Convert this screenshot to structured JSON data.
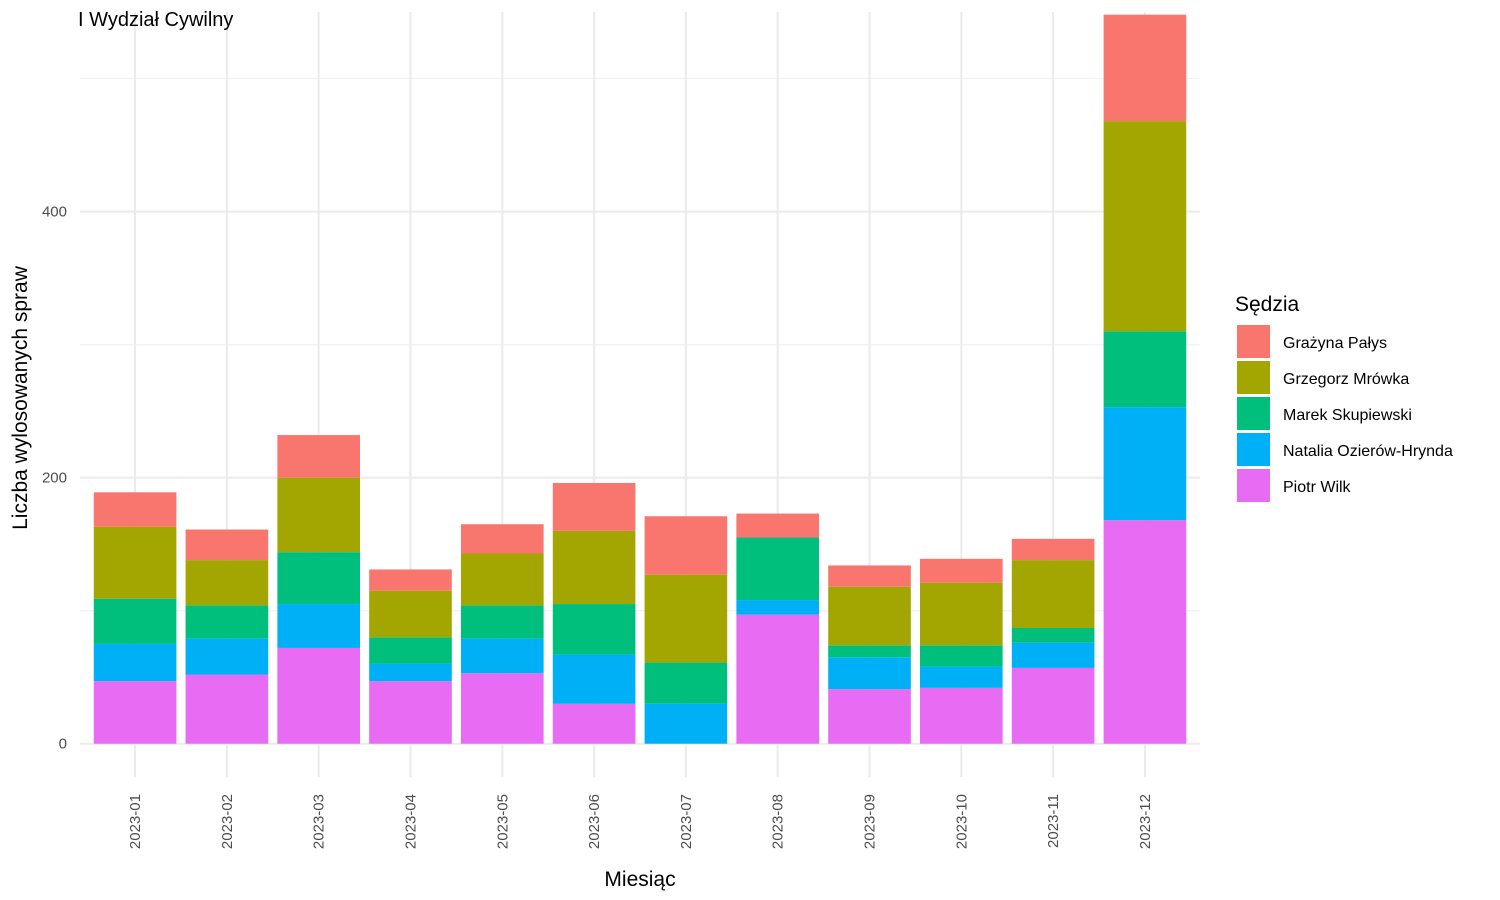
{
  "chart_data": {
    "type": "bar",
    "stacked": true,
    "title": "I Wydział Cywilny",
    "xlabel": "Miesiąc",
    "ylabel": "Liczba wylosowanych spraw",
    "ylim": [
      -25,
      550
    ],
    "yticks": [
      0,
      200,
      400
    ],
    "grid": true,
    "legend": {
      "title": "Sędzia",
      "position": "right"
    },
    "categories": [
      "2023-01",
      "2023-02",
      "2023-03",
      "2023-04",
      "2023-05",
      "2023-06",
      "2023-07",
      "2023-08",
      "2023-09",
      "2023-10",
      "2023-11",
      "2023-12"
    ],
    "series": [
      {
        "name": "Piotr Wilk",
        "color": "#E76BF3",
        "values": [
          47,
          52,
          72,
          47,
          53,
          30,
          0,
          97,
          41,
          42,
          57,
          168
        ]
      },
      {
        "name": "Natalia Ozierów-Hrynda",
        "color": "#00B0F6",
        "values": [
          28,
          27,
          33,
          13,
          26,
          37,
          30,
          11,
          24,
          16,
          19,
          85
        ]
      },
      {
        "name": "Marek Skupiewski",
        "color": "#00BF7D",
        "values": [
          34,
          25,
          39,
          20,
          25,
          38,
          31,
          47,
          9,
          16,
          11,
          57
        ]
      },
      {
        "name": "Grzegorz Mrówka",
        "color": "#A3A500",
        "values": [
          54,
          34,
          56,
          35,
          39,
          55,
          66,
          0,
          44,
          47,
          51,
          158
        ]
      },
      {
        "name": "Grażyna Pałys",
        "color": "#F8766D",
        "values": [
          26,
          23,
          32,
          16,
          22,
          36,
          44,
          18,
          16,
          18,
          16,
          80
        ]
      }
    ],
    "legend_order": [
      "Grażyna Pałys",
      "Grzegorz Mrówka",
      "Marek Skupiewski",
      "Natalia Ozierów-Hrynda",
      "Piotr Wilk"
    ]
  }
}
